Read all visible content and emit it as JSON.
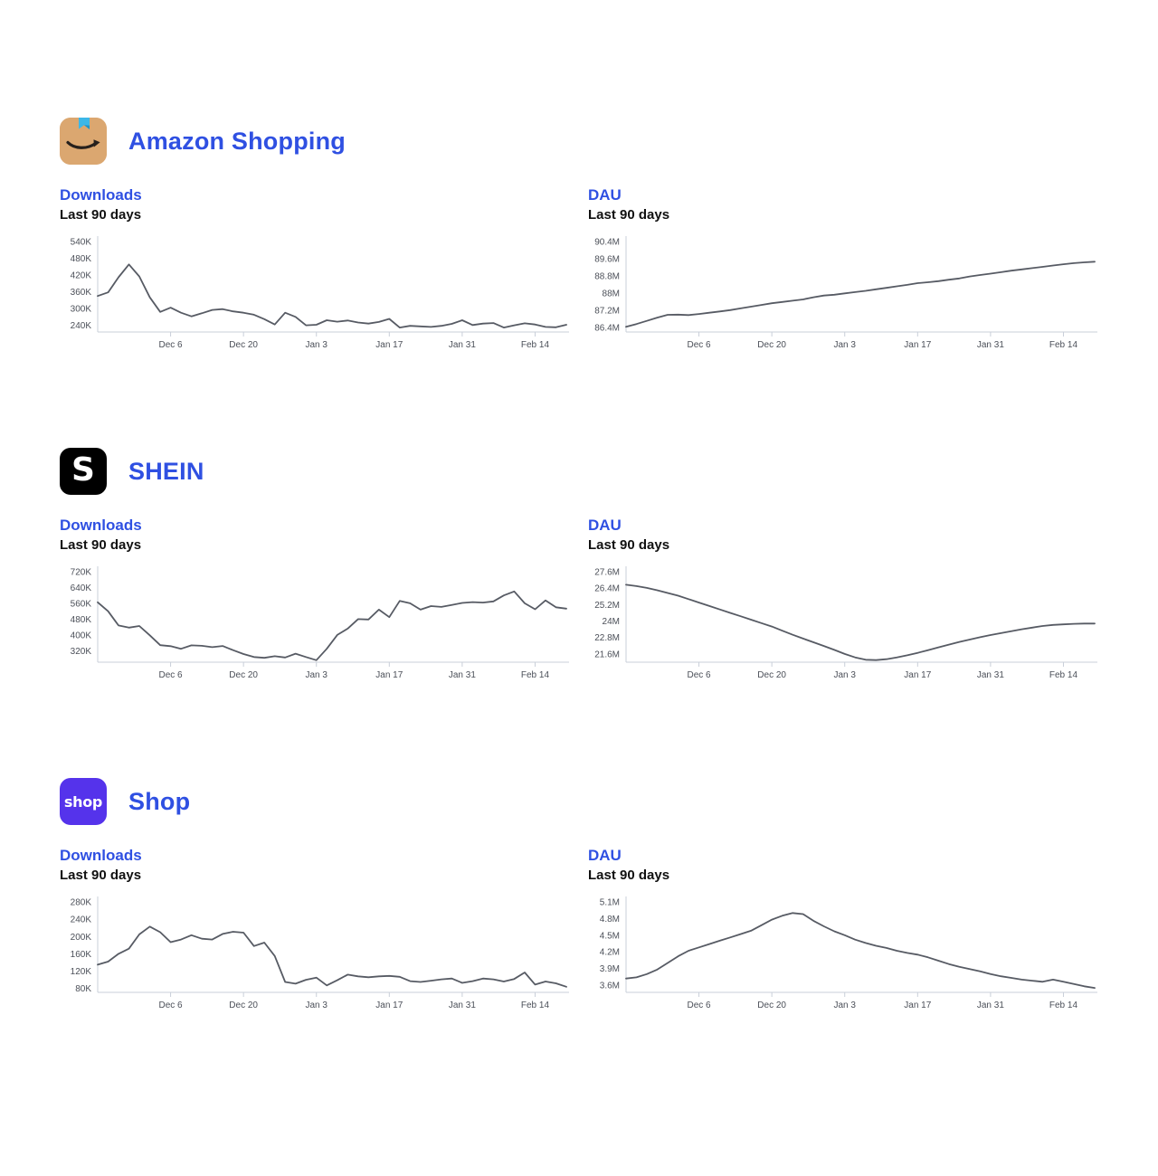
{
  "colors": {
    "accent_blue": "#2F50E2",
    "chart_line": "#575B64",
    "axis_line": "#C9CFD9",
    "tick_text": "#4B4F58",
    "amazon_icon_bg": "#DBA770",
    "amazon_tape_blue": "#3CB7E8",
    "amazon_smile_dark": "#26201C",
    "shein_icon_bg": "#000000",
    "shop_icon_bg": "#5533EB"
  },
  "apps": [
    {
      "title": "Amazon Shopping",
      "icon": "amazon-smile-app-icon",
      "icon_text": ""
    },
    {
      "title": "SHEIN",
      "icon": "shein-s-app-icon",
      "icon_text": "S"
    },
    {
      "title": "Shop",
      "icon": "shop-app-icon",
      "icon_text": "shop"
    }
  ],
  "chart_data": [
    {
      "app": "Amazon Shopping",
      "metric": "Downloads",
      "subtitle": "Last 90 days",
      "type": "line",
      "unit": "K (downloads, thousands)",
      "x_tick_labels": [
        "Dec 6",
        "Dec 20",
        "Jan 3",
        "Jan 17",
        "Jan 31",
        "Feb 14"
      ],
      "x_tick_indices": [
        7,
        14,
        21,
        28,
        35,
        42
      ],
      "y_tick_labels": [
        "240K",
        "300K",
        "360K",
        "420K",
        "480K",
        "540K"
      ],
      "y_tick_values": [
        240,
        300,
        360,
        420,
        480,
        540
      ],
      "ylim": [
        216,
        540
      ],
      "grid": false,
      "legend": "none",
      "values": [
        345,
        358,
        412,
        458,
        415,
        340,
        288,
        303,
        285,
        272,
        283,
        295,
        298,
        290,
        285,
        278,
        262,
        243,
        285,
        270,
        240,
        242,
        258,
        253,
        257,
        250,
        246,
        252,
        263,
        232,
        238,
        236,
        234,
        238,
        245,
        258,
        241,
        246,
        248,
        232,
        240,
        247,
        243,
        234,
        233,
        242
      ]
    },
    {
      "app": "Amazon Shopping",
      "metric": "DAU",
      "subtitle": "Last 90 days",
      "type": "line",
      "unit": "M (daily active users, millions)",
      "x_tick_labels": [
        "Dec 6",
        "Dec 20",
        "Jan 3",
        "Jan 17",
        "Jan 31",
        "Feb 14"
      ],
      "x_tick_indices": [
        7,
        14,
        21,
        28,
        35,
        42
      ],
      "y_tick_labels": [
        "86.4M",
        "87.2M",
        "88M",
        "88.8M",
        "89.6M",
        "90.4M"
      ],
      "y_tick_values": [
        86.4,
        87.2,
        88,
        88.8,
        89.6,
        90.4
      ],
      "ylim": [
        86.18,
        90.4
      ],
      "grid": false,
      "legend": "none",
      "values": [
        86.42,
        86.55,
        86.7,
        86.85,
        86.98,
        86.99,
        86.97,
        87.02,
        87.08,
        87.14,
        87.2,
        87.28,
        87.36,
        87.44,
        87.52,
        87.58,
        87.64,
        87.7,
        87.8,
        87.88,
        87.92,
        87.98,
        88.04,
        88.1,
        88.17,
        88.24,
        88.31,
        88.38,
        88.46,
        88.5,
        88.55,
        88.62,
        88.68,
        88.77,
        88.84,
        88.9,
        88.97,
        89.04,
        89.1,
        89.16,
        89.22,
        89.28,
        89.34,
        89.39,
        89.43,
        89.46
      ]
    },
    {
      "app": "SHEIN",
      "metric": "Downloads",
      "subtitle": "Last 90 days",
      "type": "line",
      "unit": "K (downloads, thousands)",
      "x_tick_labels": [
        "Dec 6",
        "Dec 20",
        "Jan 3",
        "Jan 17",
        "Jan 31",
        "Feb 14"
      ],
      "x_tick_indices": [
        7,
        14,
        21,
        28,
        35,
        42
      ],
      "y_tick_labels": [
        "320K",
        "400K",
        "480K",
        "560K",
        "640K",
        "720K"
      ],
      "y_tick_values": [
        320,
        400,
        480,
        560,
        640,
        720
      ],
      "ylim": [
        262,
        720
      ],
      "grid": false,
      "legend": "none",
      "values": [
        565,
        520,
        448,
        437,
        445,
        398,
        348,
        343,
        330,
        347,
        345,
        338,
        344,
        323,
        303,
        288,
        284,
        292,
        286,
        305,
        288,
        272,
        330,
        400,
        432,
        480,
        478,
        528,
        490,
        572,
        560,
        528,
        546,
        542,
        552,
        562,
        566,
        564,
        570,
        600,
        620,
        560,
        530,
        575,
        540,
        533
      ]
    },
    {
      "app": "SHEIN",
      "metric": "DAU",
      "subtitle": "Last 90 days",
      "type": "line",
      "unit": "M (daily active users, millions)",
      "x_tick_labels": [
        "Dec 6",
        "Dec 20",
        "Jan 3",
        "Jan 17",
        "Jan 31",
        "Feb 14"
      ],
      "x_tick_indices": [
        7,
        14,
        21,
        28,
        35,
        42
      ],
      "y_tick_labels": [
        "21.6M",
        "22.8M",
        "24M",
        "25.2M",
        "26.4M",
        "27.6M"
      ],
      "y_tick_values": [
        21.6,
        22.8,
        24,
        25.2,
        26.4,
        27.6
      ],
      "ylim": [
        21.0,
        27.6
      ],
      "grid": false,
      "legend": "none",
      "values": [
        26.65,
        26.55,
        26.42,
        26.25,
        26.05,
        25.85,
        25.6,
        25.35,
        25.1,
        24.85,
        24.6,
        24.35,
        24.1,
        23.85,
        23.6,
        23.3,
        23.0,
        22.72,
        22.45,
        22.18,
        21.9,
        21.6,
        21.35,
        21.18,
        21.15,
        21.22,
        21.35,
        21.5,
        21.68,
        21.88,
        22.08,
        22.28,
        22.48,
        22.65,
        22.82,
        22.98,
        23.12,
        23.26,
        23.4,
        23.52,
        23.64,
        23.72,
        23.76,
        23.8,
        23.82,
        23.82
      ]
    },
    {
      "app": "Shop",
      "metric": "Downloads",
      "subtitle": "Last 90 days",
      "type": "line",
      "unit": "K (downloads, thousands)",
      "x_tick_labels": [
        "Dec 6",
        "Dec 20",
        "Jan 3",
        "Jan 17",
        "Jan 31",
        "Feb 14"
      ],
      "x_tick_indices": [
        7,
        14,
        21,
        28,
        35,
        42
      ],
      "y_tick_labels": [
        "80K",
        "120K",
        "160K",
        "200K",
        "240K",
        "280K"
      ],
      "y_tick_values": [
        80,
        120,
        160,
        200,
        240,
        280
      ],
      "ylim": [
        71,
        280
      ],
      "grid": false,
      "legend": "none",
      "values": [
        135,
        142,
        160,
        172,
        205,
        223,
        210,
        187,
        193,
        203,
        195,
        193,
        206,
        211,
        209,
        178,
        186,
        155,
        95,
        91,
        100,
        105,
        87,
        99,
        112,
        108,
        106,
        108,
        109,
        107,
        97,
        95,
        98,
        101,
        103,
        93,
        97,
        103,
        101,
        96,
        102,
        117,
        89,
        96,
        92,
        84
      ]
    },
    {
      "app": "Shop",
      "metric": "DAU",
      "subtitle": "Last 90 days",
      "type": "line",
      "unit": "M (daily active users, millions)",
      "x_tick_labels": [
        "Dec 6",
        "Dec 20",
        "Jan 3",
        "Jan 17",
        "Jan 31",
        "Feb 14"
      ],
      "x_tick_indices": [
        7,
        14,
        21,
        28,
        35,
        42
      ],
      "y_tick_labels": [
        "3.6M",
        "3.9M",
        "4.2M",
        "4.5M",
        "4.8M",
        "5.1M"
      ],
      "y_tick_values": [
        3.6,
        3.9,
        4.2,
        4.5,
        4.8,
        5.1
      ],
      "ylim": [
        3.47,
        5.1
      ],
      "grid": false,
      "legend": "none",
      "values": [
        3.72,
        3.74,
        3.8,
        3.88,
        4.0,
        4.12,
        4.22,
        4.28,
        4.34,
        4.4,
        4.46,
        4.52,
        4.58,
        4.68,
        4.78,
        4.85,
        4.9,
        4.88,
        4.76,
        4.66,
        4.57,
        4.5,
        4.42,
        4.36,
        4.31,
        4.27,
        4.22,
        4.18,
        4.15,
        4.1,
        4.04,
        3.98,
        3.93,
        3.89,
        3.85,
        3.8,
        3.76,
        3.73,
        3.7,
        3.68,
        3.66,
        3.7,
        3.66,
        3.62,
        3.58,
        3.55
      ]
    }
  ]
}
